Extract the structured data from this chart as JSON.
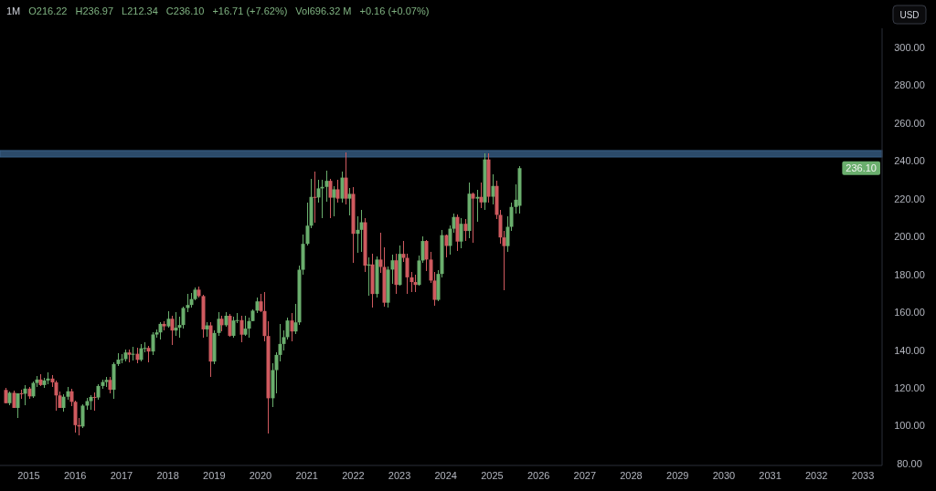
{
  "chart_data": {
    "type": "candlestick",
    "title": "1M",
    "annotations": [
      "O216.22",
      "H236.97",
      "L212.34",
      "C236.10",
      "+16.71 (+7.62%)",
      "Vol696.32 M",
      "+0.16 (+0.07%)",
      {
        "text": "236.10",
        "y": 236.1
      }
    ],
    "ylabel": "USD",
    "x": [
      "2014-07",
      "2014-08",
      "2014-09",
      "2014-10",
      "2014-11",
      "2014-12",
      "2015-01",
      "2015-02",
      "2015-03",
      "2015-04",
      "2015-05",
      "2015-06",
      "2015-07",
      "2015-08",
      "2015-09",
      "2015-10",
      "2015-11",
      "2015-12",
      "2016-01",
      "2016-02",
      "2016-03",
      "2016-04",
      "2016-05",
      "2016-06",
      "2016-07",
      "2016-08",
      "2016-09",
      "2016-10",
      "2016-11",
      "2016-12",
      "2017-01",
      "2017-02",
      "2017-03",
      "2017-04",
      "2017-05",
      "2017-06",
      "2017-07",
      "2017-08",
      "2017-09",
      "2017-10",
      "2017-11",
      "2017-12",
      "2018-01",
      "2018-02",
      "2018-03",
      "2018-04",
      "2018-05",
      "2018-06",
      "2018-07",
      "2018-08",
      "2018-09",
      "2018-10",
      "2018-11",
      "2018-12",
      "2019-01",
      "2019-02",
      "2019-03",
      "2019-04",
      "2019-05",
      "2019-06",
      "2019-07",
      "2019-08",
      "2019-09",
      "2019-10",
      "2019-11",
      "2019-12",
      "2020-01",
      "2020-02",
      "2020-03",
      "2020-04",
      "2020-05",
      "2020-06",
      "2020-07",
      "2020-08",
      "2020-09",
      "2020-10",
      "2020-11",
      "2020-12",
      "2021-01",
      "2021-02",
      "2021-03",
      "2021-04",
      "2021-05",
      "2021-06",
      "2021-07",
      "2021-08",
      "2021-09",
      "2021-10",
      "2021-11",
      "2021-12",
      "2022-01",
      "2022-02",
      "2022-03",
      "2022-04",
      "2022-05",
      "2022-06",
      "2022-07",
      "2022-08",
      "2022-09",
      "2022-10",
      "2022-11",
      "2022-12",
      "2023-01",
      "2023-02",
      "2023-03",
      "2023-04",
      "2023-05",
      "2023-06",
      "2023-07",
      "2023-08",
      "2023-09",
      "2023-10",
      "2023-11",
      "2023-12",
      "2024-01",
      "2024-02",
      "2024-03",
      "2024-04",
      "2024-05",
      "2024-06",
      "2024-07",
      "2024-08",
      "2024-09",
      "2024-10",
      "2024-11",
      "2024-12",
      "2025-01",
      "2025-02",
      "2025-03",
      "2025-04",
      "2025-05",
      "2025-06",
      "2025-07",
      "2025-08"
    ],
    "ohlc": [
      [
        118.9,
        120.0,
        111.6,
        111.9
      ],
      [
        111.9,
        118.0,
        110.9,
        117.4
      ],
      [
        117.4,
        118.5,
        109.2,
        109.4
      ],
      [
        109.4,
        117.3,
        104.0,
        117.1
      ],
      [
        117.1,
        118.9,
        114.1,
        116.9
      ],
      [
        116.9,
        121.2,
        110.6,
        119.6
      ],
      [
        119.6,
        120.7,
        114.3,
        115.5
      ],
      [
        115.5,
        123.4,
        114.8,
        122.6
      ],
      [
        122.6,
        126.1,
        120.7,
        124.4
      ],
      [
        124.4,
        127.1,
        121.0,
        121.5
      ],
      [
        121.5,
        125.2,
        120.0,
        123.9
      ],
      [
        123.9,
        128.0,
        122.0,
        124.9
      ],
      [
        124.9,
        126.6,
        120.6,
        122.9
      ],
      [
        122.9,
        123.8,
        108.1,
        116.0
      ],
      [
        116.0,
        118.0,
        109.2,
        109.4
      ],
      [
        109.4,
        116.4,
        107.3,
        115.3
      ],
      [
        115.3,
        120.5,
        113.6,
        118.2
      ],
      [
        118.2,
        119.5,
        110.3,
        112.6
      ],
      [
        112.6,
        113.0,
        96.6,
        100.3
      ],
      [
        100.3,
        104.2,
        94.8,
        99.6
      ],
      [
        99.6,
        111.4,
        99.0,
        110.6
      ],
      [
        110.6,
        114.6,
        108.2,
        113.0
      ],
      [
        113.0,
        116.0,
        108.6,
        115.2
      ],
      [
        115.2,
        117.5,
        108.0,
        114.9
      ],
      [
        114.9,
        122.1,
        113.9,
        121.0
      ],
      [
        121.0,
        124.4,
        119.6,
        123.1
      ],
      [
        123.1,
        125.7,
        120.4,
        124.2
      ],
      [
        124.2,
        125.6,
        117.2,
        119.0
      ],
      [
        119.0,
        133.4,
        114.2,
        132.6
      ],
      [
        132.6,
        138.3,
        131.5,
        134.9
      ],
      [
        134.9,
        138.0,
        132.8,
        135.2
      ],
      [
        135.2,
        140.1,
        134.0,
        138.7
      ],
      [
        138.7,
        140.4,
        133.6,
        137.5
      ],
      [
        137.5,
        141.5,
        134.3,
        138.0
      ],
      [
        138.0,
        141.4,
        133.1,
        134.8
      ],
      [
        134.8,
        143.1,
        134.0,
        140.9
      ],
      [
        140.9,
        144.0,
        139.0,
        141.1
      ],
      [
        141.1,
        142.0,
        133.7,
        139.2
      ],
      [
        139.2,
        149.4,
        137.3,
        148.2
      ],
      [
        148.2,
        151.0,
        146.3,
        149.3
      ],
      [
        149.3,
        154.6,
        145.5,
        153.8
      ],
      [
        153.8,
        155.3,
        150.5,
        152.5
      ],
      [
        152.5,
        160.3,
        152.0,
        156.5
      ],
      [
        156.5,
        158.1,
        142.6,
        150.3
      ],
      [
        150.3,
        159.9,
        147.7,
        151.8
      ],
      [
        151.8,
        157.8,
        146.4,
        153.2
      ],
      [
        153.2,
        163.0,
        151.4,
        162.2
      ],
      [
        162.2,
        169.5,
        160.2,
        163.8
      ],
      [
        163.8,
        170.2,
        162.4,
        166.9
      ],
      [
        166.9,
        173.0,
        166.5,
        171.9
      ],
      [
        171.9,
        173.4,
        167.9,
        168.5
      ],
      [
        168.5,
        169.0,
        146.4,
        150.9
      ],
      [
        150.9,
        154.8,
        146.8,
        153.0
      ],
      [
        153.0,
        154.6,
        125.8,
        133.9
      ],
      [
        133.9,
        150.2,
        132.7,
        149.0
      ],
      [
        149.0,
        159.9,
        147.6,
        156.5
      ],
      [
        156.5,
        158.1,
        150.0,
        153.1
      ],
      [
        153.1,
        159.8,
        152.4,
        158.1
      ],
      [
        158.1,
        159.0,
        146.9,
        147.5
      ],
      [
        147.5,
        157.4,
        146.3,
        155.6
      ],
      [
        155.6,
        159.3,
        154.2,
        155.8
      ],
      [
        155.8,
        157.9,
        143.9,
        148.1
      ],
      [
        148.1,
        158.0,
        147.3,
        151.3
      ],
      [
        151.3,
        157.0,
        146.4,
        155.3
      ],
      [
        155.3,
        161.7,
        155.0,
        160.8
      ],
      [
        160.8,
        167.9,
        159.6,
        165.7
      ],
      [
        165.7,
        169.5,
        159.8,
        160.6
      ],
      [
        160.6,
        170.5,
        144.7,
        147.4
      ],
      [
        147.4,
        155.3,
        95.7,
        114.5
      ],
      [
        114.5,
        133.0,
        109.7,
        129.4
      ],
      [
        129.4,
        138.9,
        117.1,
        137.4
      ],
      [
        137.4,
        153.9,
        134.1,
        143.2
      ],
      [
        143.2,
        150.3,
        139.6,
        146.8
      ],
      [
        146.8,
        157.3,
        145.4,
        155.6
      ],
      [
        155.6,
        159.3,
        144.7,
        149.8
      ],
      [
        149.8,
        164.6,
        148.6,
        154.6
      ],
      [
        154.6,
        184.7,
        153.2,
        182.4
      ],
      [
        182.4,
        200.9,
        180.0,
        196.1
      ],
      [
        196.1,
        217.8,
        195.0,
        205.7
      ],
      [
        205.7,
        230.4,
        204.2,
        220.9
      ],
      [
        220.9,
        234.5,
        207.5,
        220.6
      ],
      [
        220.6,
        230.0,
        217.9,
        225.4
      ],
      [
        225.4,
        229.9,
        209.8,
        226.2
      ],
      [
        226.2,
        234.9,
        218.5,
        229.4
      ],
      [
        229.4,
        230.6,
        209.8,
        220.5
      ],
      [
        220.5,
        226.8,
        210.7,
        224.9
      ],
      [
        224.9,
        229.9,
        217.7,
        220.0
      ],
      [
        220.0,
        234.5,
        218.1,
        231.1
      ],
      [
        231.1,
        244.5,
        217.0,
        220.0
      ],
      [
        220.0,
        225.5,
        211.3,
        222.5
      ],
      [
        222.5,
        225.9,
        186.1,
        201.4
      ],
      [
        201.4,
        210.6,
        191.5,
        203.5
      ],
      [
        203.5,
        214.0,
        192.0,
        207.5
      ],
      [
        207.5,
        209.5,
        181.0,
        184.6
      ],
      [
        184.6,
        189.0,
        168.9,
        185.2
      ],
      [
        185.2,
        191.0,
        162.5,
        169.6
      ],
      [
        169.6,
        189.6,
        167.7,
        187.8
      ],
      [
        187.8,
        202.0,
        180.8,
        183.9
      ],
      [
        183.9,
        194.3,
        162.8,
        165.0
      ],
      [
        165.0,
        184.0,
        162.5,
        182.5
      ],
      [
        182.5,
        190.5,
        175.0,
        187.4
      ],
      [
        187.4,
        191.0,
        169.5,
        174.4
      ],
      [
        174.4,
        195.0,
        174.0,
        190.8
      ],
      [
        190.8,
        197.4,
        186.7,
        188.7
      ],
      [
        188.7,
        191.0,
        169.6,
        178.4
      ],
      [
        178.4,
        181.0,
        170.5,
        175.9
      ],
      [
        175.9,
        180.0,
        170.6,
        174.4
      ],
      [
        174.4,
        189.8,
        174.0,
        187.3
      ],
      [
        187.3,
        200.0,
        186.0,
        197.6
      ],
      [
        197.6,
        198.3,
        181.8,
        187.8
      ],
      [
        187.8,
        191.7,
        175.4,
        176.7
      ],
      [
        176.7,
        181.0,
        163.5,
        166.5
      ],
      [
        166.5,
        182.0,
        165.9,
        180.2
      ],
      [
        180.2,
        203.4,
        178.4,
        200.7
      ],
      [
        200.7,
        201.0,
        188.9,
        195.0
      ],
      [
        195.0,
        205.9,
        190.4,
        204.1
      ],
      [
        204.1,
        211.9,
        201.9,
        210.3
      ],
      [
        210.3,
        211.5,
        192.4,
        197.3
      ],
      [
        197.3,
        209.5,
        194.0,
        206.7
      ],
      [
        206.7,
        209.0,
        197.7,
        202.9
      ],
      [
        202.9,
        228.6,
        199.0,
        222.6
      ],
      [
        222.6,
        223.0,
        196.6,
        220.0
      ],
      [
        220.0,
        224.6,
        207.9,
        220.9
      ],
      [
        220.9,
        228.6,
        215.0,
        218.0
      ],
      [
        218.0,
        244.0,
        213.8,
        240.7
      ],
      [
        240.7,
        243.7,
        217.7,
        221.0
      ],
      [
        221.0,
        233.0,
        216.8,
        226.7
      ],
      [
        226.7,
        229.5,
        209.4,
        211.4
      ],
      [
        211.4,
        214.0,
        196.4,
        199.5
      ],
      [
        199.5,
        203.0,
        171.7,
        194.9
      ],
      [
        194.9,
        210.8,
        192.0,
        205.1
      ],
      [
        205.1,
        217.9,
        203.0,
        215.6
      ],
      [
        215.6,
        227.3,
        212.0,
        219.4
      ],
      [
        216.22,
        236.97,
        212.34,
        236.1
      ]
    ],
    "colors": [
      "#cf5a5f",
      "#6aae6d",
      "#cf5a5f",
      "#6aae6d",
      "#cf5a5f",
      "#6aae6d",
      "#cf5a5f",
      "#6aae6d",
      "#6aae6d",
      "#cf5a5f",
      "#6aae6d",
      "#6aae6d",
      "#cf5a5f",
      "#cf5a5f",
      "#cf5a5f",
      "#6aae6d",
      "#6aae6d",
      "#cf5a5f",
      "#cf5a5f",
      "#cf5a5f",
      "#6aae6d",
      "#6aae6d",
      "#6aae6d",
      "#cf5a5f",
      "#6aae6d",
      "#6aae6d",
      "#6aae6d",
      "#cf5a5f",
      "#6aae6d",
      "#6aae6d",
      "#6aae6d",
      "#6aae6d",
      "#cf5a5f",
      "#6aae6d",
      "#cf5a5f",
      "#6aae6d",
      "#6aae6d",
      "#cf5a5f",
      "#6aae6d",
      "#6aae6d",
      "#6aae6d",
      "#cf5a5f",
      "#6aae6d",
      "#cf5a5f",
      "#6aae6d",
      "#6aae6d",
      "#6aae6d",
      "#6aae6d",
      "#6aae6d",
      "#6aae6d",
      "#cf5a5f",
      "#cf5a5f",
      "#6aae6d",
      "#cf5a5f",
      "#6aae6d",
      "#6aae6d",
      "#cf5a5f",
      "#6aae6d",
      "#cf5a5f",
      "#6aae6d",
      "#6aae6d",
      "#cf5a5f",
      "#6aae6d",
      "#6aae6d",
      "#6aae6d",
      "#6aae6d",
      "#cf5a5f",
      "#cf5a5f",
      "#cf5a5f",
      "#6aae6d",
      "#6aae6d",
      "#6aae6d",
      "#6aae6d",
      "#6aae6d",
      "#cf5a5f",
      "#6aae6d",
      "#6aae6d",
      "#6aae6d",
      "#6aae6d",
      "#6aae6d",
      "#cf5a5f",
      "#6aae6d",
      "#6aae6d",
      "#6aae6d",
      "#cf5a5f",
      "#6aae6d",
      "#cf5a5f",
      "#6aae6d",
      "#cf5a5f",
      "#6aae6d",
      "#cf5a5f",
      "#6aae6d",
      "#6aae6d",
      "#cf5a5f",
      "#6aae6d",
      "#cf5a5f",
      "#6aae6d",
      "#cf5a5f",
      "#cf5a5f",
      "#6aae6d",
      "#6aae6d",
      "#cf5a5f",
      "#6aae6d",
      "#cf5a5f",
      "#cf5a5f",
      "#cf5a5f",
      "#cf5a5f",
      "#6aae6d",
      "#6aae6d",
      "#cf5a5f",
      "#cf5a5f",
      "#cf5a5f",
      "#6aae6d",
      "#6aae6d",
      "#cf5a5f",
      "#6aae6d",
      "#6aae6d",
      "#cf5a5f",
      "#6aae6d",
      "#cf5a5f",
      "#6aae6d",
      "#cf5a5f",
      "#6aae6d",
      "#cf5a5f",
      "#6aae6d",
      "#cf5a5f",
      "#6aae6d",
      "#cf5a5f",
      "#cf5a5f",
      "#cf5a5f",
      "#6aae6d",
      "#6aae6d",
      "#6aae6d",
      "#6aae6d"
    ],
    "xlim": [
      "2014-05-19",
      "2033-06-01"
    ],
    "xticks": [
      "2015",
      "2016",
      "2017",
      "2018",
      "2019",
      "2020",
      "2021",
      "2022",
      "2023",
      "2024",
      "2025",
      "2026",
      "2027",
      "2028",
      "2029",
      "2030",
      "2031",
      "2032",
      "2033"
    ],
    "ylim": [
      79,
      310
    ],
    "yticks": [
      {
        "value": 80,
        "label": "80.00"
      },
      {
        "value": 100,
        "label": "100.00"
      },
      {
        "value": 120,
        "label": "120.00"
      },
      {
        "value": 140,
        "label": "140.00"
      },
      {
        "value": 160,
        "label": "160.00"
      },
      {
        "value": 180,
        "label": "180.00"
      },
      {
        "value": 200,
        "label": "200.00"
      },
      {
        "value": 220,
        "label": "220.00"
      },
      {
        "value": 240,
        "label": "240.00"
      },
      {
        "value": 260,
        "label": "260.00"
      },
      {
        "value": 280,
        "label": "280.00"
      },
      {
        "value": 300,
        "label": "300.00"
      }
    ],
    "bands": [
      {
        "axis": "y",
        "from": 242.0,
        "to": 245.4,
        "color": "#2c4b6a"
      }
    ]
  }
}
